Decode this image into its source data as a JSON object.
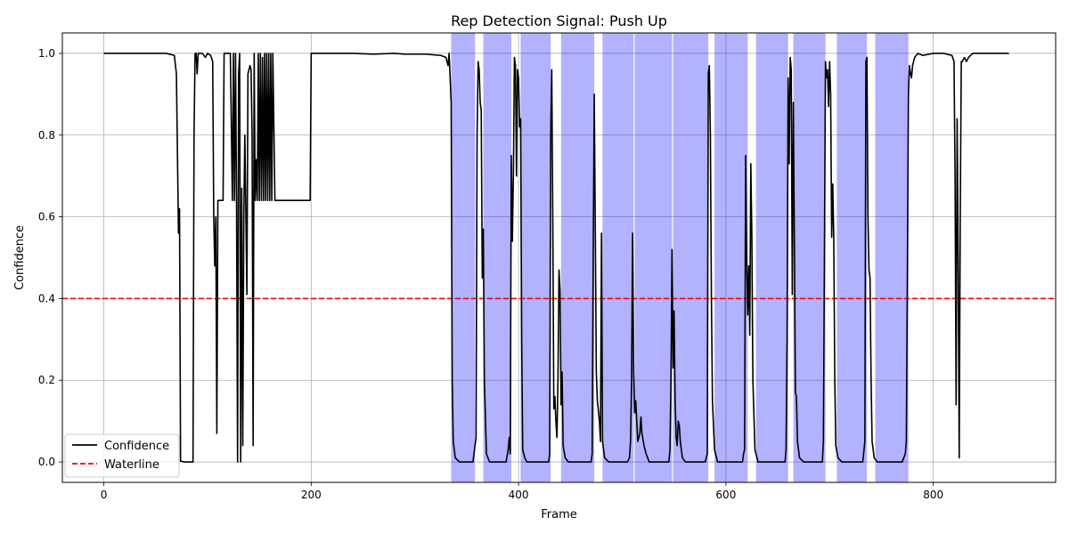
{
  "chart_data": {
    "type": "line",
    "title": "Rep Detection Signal: Push Up",
    "xlabel": "Frame",
    "ylabel": "Confidence",
    "xlim": [
      -40,
      918
    ],
    "ylim": [
      -0.05,
      1.05
    ],
    "xticks": [
      0,
      200,
      400,
      600,
      800
    ],
    "yticks": [
      0.0,
      0.2,
      0.4,
      0.6,
      0.8,
      1.0
    ],
    "grid": true,
    "legend_position": "lower-left",
    "series": [
      {
        "name": "Confidence",
        "color": "#000000",
        "style": "solid",
        "points": [
          [
            0,
            1.0
          ],
          [
            40,
            1.0
          ],
          [
            60,
            1.0
          ],
          [
            68,
            0.995
          ],
          [
            70,
            0.95
          ],
          [
            72,
            0.56
          ],
          [
            73,
            0.62
          ],
          [
            74,
            0.002
          ],
          [
            78,
            0.0
          ],
          [
            82,
            0.0
          ],
          [
            86,
            0.0
          ],
          [
            87,
            0.8
          ],
          [
            88,
            1.0
          ],
          [
            89,
            1.0
          ],
          [
            90,
            0.95
          ],
          [
            91,
            1.0
          ],
          [
            95,
            1.0
          ],
          [
            98,
            0.99
          ],
          [
            100,
            1.0
          ],
          [
            103,
            0.995
          ],
          [
            105,
            0.98
          ],
          [
            106,
            0.6
          ],
          [
            107,
            0.48
          ],
          [
            108,
            0.6
          ],
          [
            109,
            0.07
          ],
          [
            110,
            0.64
          ],
          [
            113,
            0.64
          ],
          [
            115,
            0.64
          ],
          [
            116,
            1.0
          ],
          [
            120,
            1.0
          ],
          [
            122,
            1.0
          ],
          [
            124,
            0.64
          ],
          [
            125,
            1.0
          ],
          [
            126,
            0.64
          ],
          [
            127,
            1.0
          ],
          [
            128,
            0.64
          ],
          [
            129,
            0.0
          ],
          [
            130,
            0.95
          ],
          [
            131,
            1.0
          ],
          [
            132,
            0.0
          ],
          [
            133,
            0.67
          ],
          [
            134,
            0.04
          ],
          [
            135,
            0.6
          ],
          [
            136,
            0.8
          ],
          [
            138,
            0.41
          ],
          [
            139,
            0.95
          ],
          [
            141,
            0.97
          ],
          [
            142,
            0.96
          ],
          [
            143,
            0.8
          ],
          [
            144,
            0.04
          ],
          [
            145,
            1.0
          ],
          [
            146,
            0.64
          ],
          [
            147,
            0.74
          ],
          [
            148,
            0.64
          ],
          [
            149,
            1.0
          ],
          [
            150,
            0.64
          ],
          [
            151,
            1.0
          ],
          [
            152,
            0.64
          ],
          [
            153,
            0.99
          ],
          [
            154,
            0.64
          ],
          [
            155,
            1.0
          ],
          [
            156,
            0.64
          ],
          [
            157,
            1.0
          ],
          [
            158,
            0.64
          ],
          [
            159,
            1.0
          ],
          [
            160,
            0.64
          ],
          [
            161,
            1.0
          ],
          [
            162,
            0.64
          ],
          [
            163,
            1.0
          ],
          [
            165,
            0.64
          ],
          [
            180,
            0.64
          ],
          [
            199,
            0.64
          ],
          [
            200,
            1.0
          ],
          [
            240,
            1.0
          ],
          [
            260,
            0.998
          ],
          [
            280,
            1.0
          ],
          [
            290,
            0.998
          ],
          [
            310,
            0.998
          ],
          [
            325,
            0.995
          ],
          [
            330,
            0.99
          ],
          [
            332,
            0.97
          ],
          [
            333,
            1.0
          ],
          [
            335,
            0.88
          ],
          [
            336,
            0.2
          ],
          [
            337,
            0.05
          ],
          [
            339,
            0.01
          ],
          [
            343,
            0.0
          ],
          [
            356,
            0.0
          ],
          [
            358,
            0.04
          ],
          [
            359,
            0.06
          ],
          [
            360,
            0.8
          ],
          [
            361,
            0.98
          ],
          [
            362,
            0.96
          ],
          [
            363,
            0.88
          ],
          [
            364,
            0.86
          ],
          [
            365,
            0.45
          ],
          [
            366,
            0.57
          ],
          [
            367,
            0.2
          ],
          [
            369,
            0.02
          ],
          [
            372,
            0.0
          ],
          [
            388,
            0.0
          ],
          [
            390,
            0.03
          ],
          [
            391,
            0.06
          ],
          [
            392,
            0.02
          ],
          [
            393,
            0.75
          ],
          [
            394,
            0.54
          ],
          [
            395,
            0.7
          ],
          [
            396,
            0.99
          ],
          [
            397,
            0.97
          ],
          [
            398,
            0.7
          ],
          [
            399,
            0.96
          ],
          [
            400,
            0.94
          ],
          [
            401,
            0.82
          ],
          [
            402,
            0.84
          ],
          [
            403,
            0.3
          ],
          [
            404,
            0.03
          ],
          [
            406,
            0.01
          ],
          [
            408,
            0.0
          ],
          [
            429,
            0.0
          ],
          [
            430,
            0.02
          ],
          [
            431,
            0.8
          ],
          [
            432,
            0.96
          ],
          [
            433,
            0.6
          ],
          [
            434,
            0.13
          ],
          [
            435,
            0.16
          ],
          [
            436,
            0.1
          ],
          [
            437,
            0.06
          ],
          [
            438,
            0.2
          ],
          [
            439,
            0.47
          ],
          [
            440,
            0.42
          ],
          [
            441,
            0.14
          ],
          [
            442,
            0.22
          ],
          [
            443,
            0.04
          ],
          [
            445,
            0.01
          ],
          [
            448,
            0.0
          ],
          [
            470,
            0.0
          ],
          [
            471,
            0.02
          ],
          [
            472,
            0.5
          ],
          [
            473,
            0.9
          ],
          [
            474,
            0.57
          ],
          [
            475,
            0.22
          ],
          [
            476,
            0.15
          ],
          [
            478,
            0.1
          ],
          [
            479,
            0.05
          ],
          [
            480,
            0.56
          ],
          [
            481,
            0.05
          ],
          [
            483,
            0.01
          ],
          [
            487,
            0.0
          ],
          [
            505,
            0.0
          ],
          [
            507,
            0.01
          ],
          [
            508,
            0.05
          ],
          [
            509,
            0.2
          ],
          [
            510,
            0.56
          ],
          [
            511,
            0.22
          ],
          [
            512,
            0.12
          ],
          [
            513,
            0.15
          ],
          [
            514,
            0.1
          ],
          [
            515,
            0.05
          ],
          [
            517,
            0.07
          ],
          [
            518,
            0.11
          ],
          [
            519,
            0.07
          ],
          [
            521,
            0.04
          ],
          [
            523,
            0.02
          ],
          [
            526,
            0.0
          ],
          [
            545,
            0.0
          ],
          [
            546,
            0.03
          ],
          [
            547,
            0.2
          ],
          [
            548,
            0.52
          ],
          [
            549,
            0.23
          ],
          [
            550,
            0.37
          ],
          [
            551,
            0.15
          ],
          [
            552,
            0.06
          ],
          [
            553,
            0.04
          ],
          [
            554,
            0.1
          ],
          [
            555,
            0.09
          ],
          [
            556,
            0.05
          ],
          [
            558,
            0.01
          ],
          [
            561,
            0.0
          ],
          [
            580,
            0.0
          ],
          [
            582,
            0.02
          ],
          [
            583,
            0.95
          ],
          [
            584,
            0.97
          ],
          [
            585,
            0.8
          ],
          [
            586,
            0.4
          ],
          [
            587,
            0.15
          ],
          [
            589,
            0.03
          ],
          [
            592,
            0.0
          ],
          [
            616,
            0.0
          ],
          [
            617,
            0.02
          ],
          [
            618,
            0.03
          ],
          [
            619,
            0.75
          ],
          [
            620,
            0.5
          ],
          [
            621,
            0.36
          ],
          [
            622,
            0.48
          ],
          [
            623,
            0.31
          ],
          [
            624,
            0.73
          ],
          [
            625,
            0.55
          ],
          [
            626,
            0.2
          ],
          [
            628,
            0.03
          ],
          [
            631,
            0.0
          ],
          [
            657,
            0.0
          ],
          [
            658,
            0.03
          ],
          [
            659,
            0.3
          ],
          [
            660,
            0.94
          ],
          [
            661,
            0.73
          ],
          [
            662,
            0.99
          ],
          [
            663,
            0.96
          ],
          [
            664,
            0.41
          ],
          [
            665,
            0.88
          ],
          [
            666,
            0.55
          ],
          [
            667,
            0.17
          ],
          [
            668,
            0.16
          ],
          [
            669,
            0.05
          ],
          [
            671,
            0.01
          ],
          [
            675,
            0.0
          ],
          [
            693,
            0.0
          ],
          [
            694,
            0.05
          ],
          [
            695,
            0.5
          ],
          [
            696,
            0.98
          ],
          [
            697,
            0.94
          ],
          [
            698,
            0.96
          ],
          [
            699,
            0.87
          ],
          [
            700,
            0.98
          ],
          [
            701,
            0.9
          ],
          [
            702,
            0.55
          ],
          [
            703,
            0.68
          ],
          [
            704,
            0.55
          ],
          [
            705,
            0.2
          ],
          [
            706,
            0.04
          ],
          [
            708,
            0.01
          ],
          [
            712,
            0.0
          ],
          [
            732,
            0.0
          ],
          [
            734,
            0.05
          ],
          [
            735,
            0.98
          ],
          [
            736,
            0.99
          ],
          [
            737,
            0.6
          ],
          [
            738,
            0.47
          ],
          [
            739,
            0.45
          ],
          [
            740,
            0.2
          ],
          [
            741,
            0.05
          ],
          [
            743,
            0.01
          ],
          [
            746,
            0.0
          ],
          [
            770,
            0.0
          ],
          [
            773,
            0.02
          ],
          [
            774,
            0.05
          ],
          [
            775,
            0.45
          ],
          [
            776,
            0.9
          ],
          [
            777,
            0.97
          ],
          [
            778,
            0.95
          ],
          [
            779,
            0.94
          ],
          [
            780,
            0.97
          ],
          [
            782,
            0.99
          ],
          [
            785,
            1.0
          ],
          [
            790,
            0.995
          ],
          [
            800,
            1.0
          ],
          [
            810,
            1.0
          ],
          [
            818,
            0.995
          ],
          [
            820,
            0.98
          ],
          [
            821,
            0.7
          ],
          [
            822,
            0.14
          ],
          [
            823,
            0.84
          ],
          [
            824,
            0.5
          ],
          [
            825,
            0.01
          ],
          [
            826,
            0.6
          ],
          [
            827,
            0.98
          ],
          [
            828,
            0.98
          ],
          [
            830,
            0.99
          ],
          [
            832,
            0.98
          ],
          [
            834,
            0.99
          ],
          [
            838,
            1.0
          ],
          [
            850,
            1.0
          ],
          [
            860,
            1.0
          ],
          [
            873,
            1.0
          ]
        ]
      },
      {
        "name": "Waterline",
        "color": "#ff0000",
        "style": "dashed",
        "y": 0.4
      }
    ],
    "rep_regions": {
      "color": "#0000ff",
      "alpha": 0.3,
      "ranges": [
        [
          335,
          358
        ],
        [
          366,
          393
        ],
        [
          402,
          431
        ],
        [
          441,
          473
        ],
        [
          481,
          511
        ],
        [
          512,
          548
        ],
        [
          549,
          583
        ],
        [
          589,
          621
        ],
        [
          629,
          660
        ],
        [
          665,
          696
        ],
        [
          707,
          736
        ],
        [
          744,
          776
        ]
      ]
    }
  }
}
